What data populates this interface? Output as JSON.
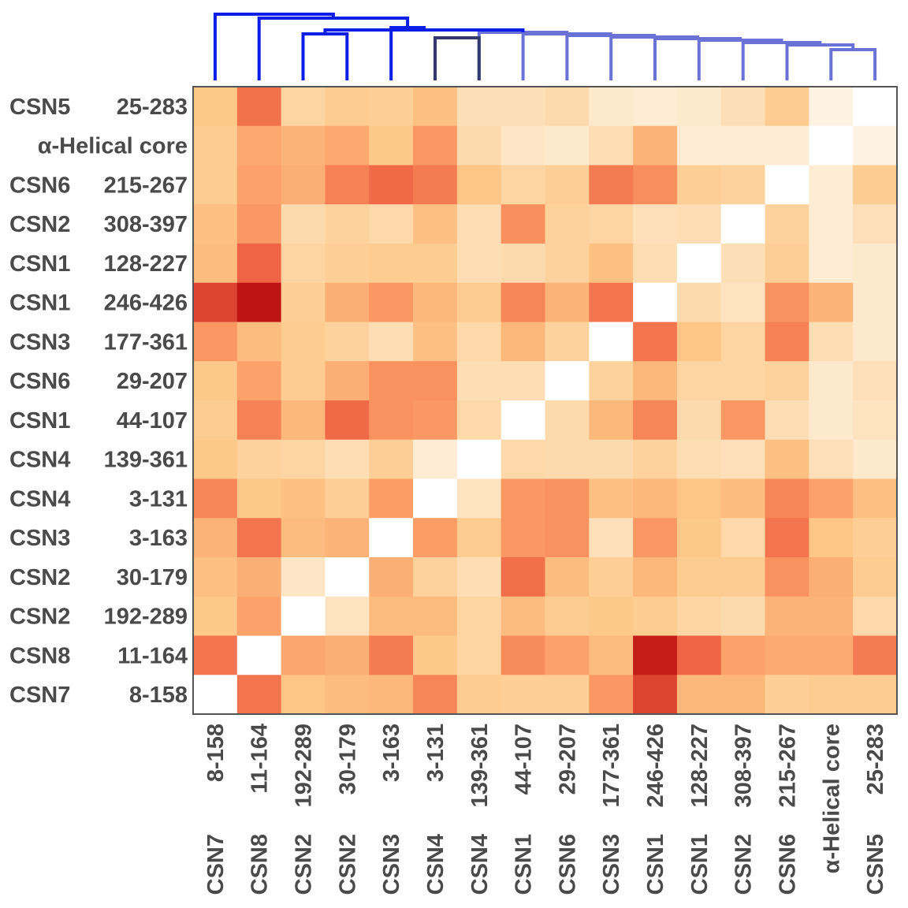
{
  "chart_data": {
    "type": "heatmap",
    "title": "",
    "xlabel": "",
    "ylabel": "",
    "colormap": [
      "#ffffff",
      "#fde6c6",
      "#fdc98a",
      "#fb9d65",
      "#ef6445",
      "#bf1512"
    ],
    "value_range": [
      0,
      1
    ],
    "dendrogram_colors": {
      "primary": "#0a1ee8",
      "dark": "#353a6e",
      "light": "#6a72d6"
    },
    "columns": [
      {
        "gene": "CSN7",
        "range": "8-158"
      },
      {
        "gene": "CSN8",
        "range": "11-164"
      },
      {
        "gene": "CSN2",
        "range": "192-289"
      },
      {
        "gene": "CSN2",
        "range": "30-179"
      },
      {
        "gene": "CSN3",
        "range": "3-163"
      },
      {
        "gene": "CSN4",
        "range": "3-131"
      },
      {
        "gene": "CSN4",
        "range": "139-361"
      },
      {
        "gene": "CSN1",
        "range": "44-107"
      },
      {
        "gene": "CSN6",
        "range": "29-207"
      },
      {
        "gene": "CSN3",
        "range": "177-361"
      },
      {
        "gene": "CSN1",
        "range": "246-426"
      },
      {
        "gene": "CSN1",
        "range": "128-227"
      },
      {
        "gene": "CSN2",
        "range": "308-397"
      },
      {
        "gene": "CSN6",
        "range": "215-267"
      },
      {
        "gene": "",
        "range": "α-Helical core"
      },
      {
        "gene": "CSN5",
        "range": "25-283"
      }
    ],
    "rows": [
      {
        "gene": "CSN5",
        "range": "25-283"
      },
      {
        "gene": "",
        "range": "α-Helical core"
      },
      {
        "gene": "CSN6",
        "range": "215-267"
      },
      {
        "gene": "CSN2",
        "range": "308-397"
      },
      {
        "gene": "CSN1",
        "range": "128-227"
      },
      {
        "gene": "CSN1",
        "range": "246-426"
      },
      {
        "gene": "CSN3",
        "range": "177-361"
      },
      {
        "gene": "CSN6",
        "range": "29-207"
      },
      {
        "gene": "CSN1",
        "range": "44-107"
      },
      {
        "gene": "CSN4",
        "range": "139-361"
      },
      {
        "gene": "CSN4",
        "range": "3-131"
      },
      {
        "gene": "CSN3",
        "range": "3-163"
      },
      {
        "gene": "CSN2",
        "range": "30-179"
      },
      {
        "gene": "CSN2",
        "range": "192-289"
      },
      {
        "gene": "CSN8",
        "range": "11-164"
      },
      {
        "gene": "CSN7",
        "range": "8-158"
      }
    ],
    "values": [
      [
        0.4,
        0.75,
        0.32,
        0.38,
        0.36,
        0.44,
        0.25,
        0.25,
        0.28,
        0.18,
        0.15,
        0.18,
        0.25,
        0.38,
        0.1,
        0.0
      ],
      [
        0.38,
        0.55,
        0.5,
        0.55,
        0.4,
        0.62,
        0.28,
        0.2,
        0.18,
        0.26,
        0.5,
        0.15,
        0.15,
        0.15,
        0.0,
        0.1
      ],
      [
        0.38,
        0.58,
        0.52,
        0.7,
        0.78,
        0.72,
        0.42,
        0.32,
        0.36,
        0.72,
        0.65,
        0.36,
        0.34,
        0.0,
        0.15,
        0.38
      ],
      [
        0.44,
        0.62,
        0.28,
        0.34,
        0.3,
        0.44,
        0.26,
        0.65,
        0.34,
        0.32,
        0.24,
        0.26,
        0.0,
        0.34,
        0.15,
        0.24
      ],
      [
        0.46,
        0.8,
        0.32,
        0.36,
        0.38,
        0.38,
        0.26,
        0.28,
        0.34,
        0.44,
        0.26,
        0.0,
        0.25,
        0.36,
        0.15,
        0.18
      ],
      [
        0.88,
        1.0,
        0.36,
        0.52,
        0.62,
        0.48,
        0.38,
        0.68,
        0.5,
        0.74,
        0.0,
        0.28,
        0.22,
        0.64,
        0.5,
        0.18
      ],
      [
        0.62,
        0.46,
        0.38,
        0.34,
        0.26,
        0.44,
        0.3,
        0.48,
        0.34,
        0.0,
        0.74,
        0.42,
        0.32,
        0.7,
        0.26,
        0.18
      ],
      [
        0.4,
        0.58,
        0.38,
        0.52,
        0.64,
        0.64,
        0.26,
        0.26,
        0.0,
        0.34,
        0.48,
        0.32,
        0.32,
        0.34,
        0.18,
        0.24
      ],
      [
        0.38,
        0.7,
        0.48,
        0.78,
        0.64,
        0.62,
        0.3,
        0.0,
        0.28,
        0.48,
        0.68,
        0.28,
        0.62,
        0.26,
        0.18,
        0.22
      ],
      [
        0.4,
        0.34,
        0.32,
        0.26,
        0.36,
        0.15,
        0.0,
        0.3,
        0.28,
        0.28,
        0.34,
        0.26,
        0.24,
        0.44,
        0.24,
        0.18
      ],
      [
        0.68,
        0.4,
        0.44,
        0.36,
        0.6,
        0.0,
        0.22,
        0.62,
        0.64,
        0.44,
        0.48,
        0.42,
        0.46,
        0.68,
        0.58,
        0.44
      ],
      [
        0.5,
        0.74,
        0.46,
        0.5,
        0.0,
        0.6,
        0.38,
        0.62,
        0.64,
        0.24,
        0.62,
        0.4,
        0.3,
        0.74,
        0.42,
        0.36
      ],
      [
        0.44,
        0.52,
        0.2,
        0.0,
        0.52,
        0.34,
        0.26,
        0.76,
        0.46,
        0.36,
        0.48,
        0.38,
        0.38,
        0.64,
        0.52,
        0.38
      ],
      [
        0.4,
        0.58,
        0.0,
        0.22,
        0.46,
        0.46,
        0.32,
        0.46,
        0.38,
        0.4,
        0.38,
        0.32,
        0.28,
        0.5,
        0.5,
        0.3
      ],
      [
        0.74,
        0.0,
        0.56,
        0.52,
        0.72,
        0.4,
        0.32,
        0.66,
        0.58,
        0.46,
        0.98,
        0.8,
        0.58,
        0.54,
        0.54,
        0.72
      ],
      [
        0.0,
        0.74,
        0.42,
        0.46,
        0.48,
        0.68,
        0.38,
        0.36,
        0.36,
        0.62,
        0.88,
        0.48,
        0.48,
        0.36,
        0.38,
        0.38
      ]
    ]
  }
}
